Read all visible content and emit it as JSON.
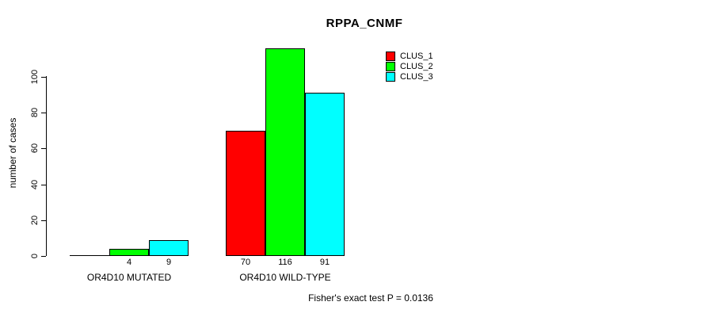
{
  "title": "RPPA_CNMF",
  "footnote": "Fisher's exact test P = 0.0136",
  "colors": {
    "clus_1": "#ff0000",
    "clus_2": "#00ff00",
    "clus_3": "#00ffff",
    "axis": "#000000",
    "background": "#ffffff"
  },
  "legend": {
    "position": "top-right",
    "items": [
      {
        "label": "CLUS_1",
        "color": "#ff0000"
      },
      {
        "label": "CLUS_2",
        "color": "#00ff00"
      },
      {
        "label": "CLUS_3",
        "color": "#00ffff"
      }
    ]
  },
  "chart_data": {
    "type": "bar",
    "title": "RPPA_CNMF",
    "xlabel": "",
    "ylabel": "number of cases",
    "categories": [
      "OR4D10 MUTATED",
      "OR4D10 WILD-TYPE"
    ],
    "series": [
      {
        "name": "CLUS_1",
        "color": "#ff0000",
        "values": [
          0,
          70
        ]
      },
      {
        "name": "CLUS_2",
        "color": "#00ff00",
        "values": [
          4,
          116
        ]
      },
      {
        "name": "CLUS_3",
        "color": "#00ffff",
        "values": [
          9,
          91
        ]
      }
    ],
    "bar_value_labels": [
      [
        "",
        "4",
        "9"
      ],
      [
        "70",
        "116",
        "91"
      ]
    ],
    "yticks": [
      0,
      20,
      40,
      60,
      80,
      100
    ],
    "ylim": [
      0,
      116
    ],
    "grid": false,
    "legend_position": "top-right",
    "annotation": "Fisher's exact test P = 0.0136"
  }
}
